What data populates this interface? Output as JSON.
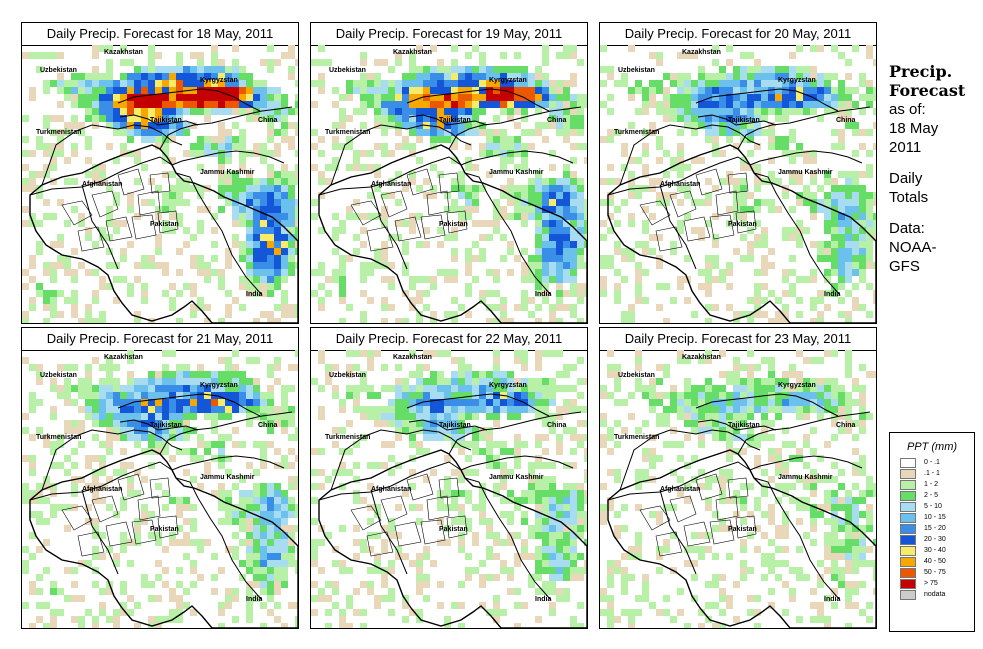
{
  "panels": [
    {
      "title": "Daily Precip. Forecast for  18 May, 2011",
      "intensity": 1.0
    },
    {
      "title": "Daily Precip. Forecast for  19 May, 2011",
      "intensity": 0.85
    },
    {
      "title": "Daily Precip. Forecast for  20 May, 2011",
      "intensity": 0.55
    },
    {
      "title": "Daily Precip. Forecast for  21 May, 2011",
      "intensity": 0.6
    },
    {
      "title": "Daily Precip. Forecast for  22 May, 2011",
      "intensity": 0.45
    },
    {
      "title": "Daily Precip. Forecast for  23 May, 2011",
      "intensity": 0.3
    }
  ],
  "labels": {
    "kazakhstan": "Kazakhstan",
    "uzbekistan": "Uzbekistan",
    "kyrgyzstan": "Kyrgyzstan",
    "tajikistan": "Tajikistan",
    "turkmenistan": "Turkmenistan",
    "china": "China",
    "jammu": "Jammu Kashmir",
    "afghanistan": "Afghanistan",
    "pakistan": "Pakistan",
    "india": "India"
  },
  "sidebar": {
    "line1": "Precip.",
    "line2": "Forecast",
    "line3": "as of:",
    "line4": "18 May",
    "line5": "2011",
    "line6": "Daily",
    "line7": "Totals",
    "line8": "Data:",
    "line9": "NOAA-",
    "line10": "GFS"
  },
  "legend": {
    "title": "PPT (mm)",
    "items": [
      {
        "label": "0 - .1",
        "color": "#ffffff"
      },
      {
        "label": ".1 - 1",
        "color": "#e8d7b8"
      },
      {
        "label": "1 - 2",
        "color": "#b8f0a8"
      },
      {
        "label": "2 - 5",
        "color": "#66dd66"
      },
      {
        "label": "5 - 10",
        "color": "#a8dcf0"
      },
      {
        "label": "10 - 15",
        "color": "#6cc0ec"
      },
      {
        "label": "15 - 20",
        "color": "#3a8ee8"
      },
      {
        "label": "20 - 30",
        "color": "#1456d8"
      },
      {
        "label": "30 - 40",
        "color": "#f6ec6a"
      },
      {
        "label": "40 - 50",
        "color": "#f6a800"
      },
      {
        "label": "50 - 75",
        "color": "#ec5800"
      },
      {
        "label": "> 75",
        "color": "#c40000"
      },
      {
        "label": "nodata",
        "color": "#cccccc"
      }
    ]
  }
}
